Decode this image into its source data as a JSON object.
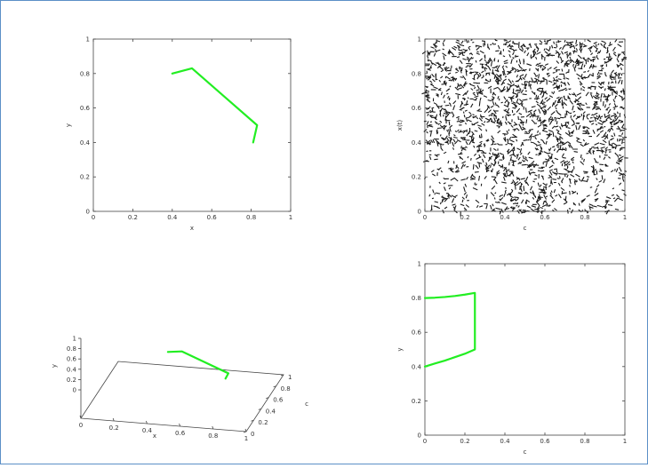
{
  "colors": {
    "curve": "#22ee22",
    "frame_border": "#5b8fc7",
    "axis": "#444444",
    "noise": "#1a1a1a"
  },
  "chart_data": [
    {
      "type": "line",
      "xlabel": "x",
      "ylabel": "y",
      "xlim": [
        0,
        1
      ],
      "ylim": [
        0,
        1
      ],
      "xticks": [
        "0",
        "0.2",
        "0.4",
        "0.6",
        "0.8",
        "1"
      ],
      "yticks": [
        "0",
        "0.2",
        "0.4",
        "0.6",
        "0.8",
        "1"
      ],
      "series": [
        {
          "x": [
            0.4,
            0.5,
            0.83,
            0.81
          ],
          "y": [
            0.8,
            0.83,
            0.5,
            0.4
          ]
        }
      ]
    },
    {
      "type": "heatmap",
      "xlabel": "c",
      "ylabel": "x(t)",
      "xlim": [
        0,
        1
      ],
      "ylim": [
        0,
        1
      ],
      "xticks": [
        "0",
        "0.2",
        "0.4",
        "0.6",
        "0.8",
        "1"
      ],
      "yticks": [
        "0",
        "0.2",
        "0.4",
        "0.6",
        "0.8",
        "1"
      ]
    },
    {
      "type": "line",
      "xlabel": "x",
      "ylabel": "y",
      "zlabel": "c",
      "xticks": [
        "0",
        "0.2",
        "0.4",
        "0.6",
        "0.8",
        "1"
      ],
      "yticks": [
        "0",
        "0.2",
        "0.4",
        "0.6",
        "0.8",
        "1"
      ],
      "zticks": [
        "0",
        "0.2",
        "0.4",
        "0.6",
        "0.8",
        "1"
      ],
      "series": [
        {
          "x": [
            0.4,
            0.5,
            0.83,
            0.81
          ],
          "y": [
            0.8,
            0.83,
            0.5,
            0.4
          ]
        }
      ]
    },
    {
      "type": "line",
      "xlabel": "c",
      "ylabel": "y",
      "xlim": [
        0,
        1
      ],
      "ylim": [
        0,
        1
      ],
      "xticks": [
        "0",
        "0.2",
        "0.4",
        "0.6",
        "0.8",
        "1"
      ],
      "yticks": [
        "0",
        "0.2",
        "0.4",
        "0.6",
        "0.8",
        "1"
      ],
      "series": [
        {
          "x": [
            0,
            0.05,
            0.1,
            0.15,
            0.2,
            0.25,
            0.25,
            0.2,
            0.15,
            0.1,
            0.05,
            0
          ],
          "y": [
            0.8,
            0.802,
            0.806,
            0.812,
            0.82,
            0.83,
            0.5,
            0.475,
            0.455,
            0.435,
            0.418,
            0.4
          ]
        }
      ]
    }
  ]
}
